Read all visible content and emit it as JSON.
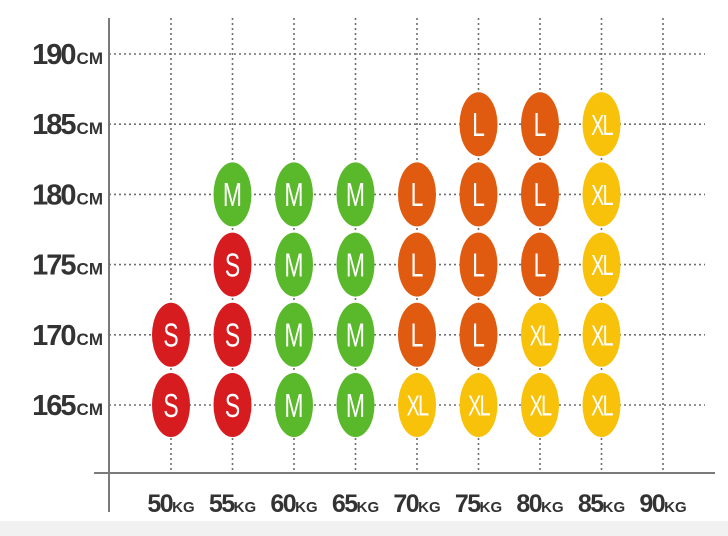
{
  "chart_data": {
    "type": "scatter",
    "title": "",
    "xlabel": "",
    "ylabel": "",
    "x_unit": "KG",
    "y_unit": "CM",
    "x_ticks": [
      {
        "value": 50,
        "label": "50",
        "unit": "KG"
      },
      {
        "value": 55,
        "label": "55",
        "unit": "KG"
      },
      {
        "value": 60,
        "label": "60",
        "unit": "KG"
      },
      {
        "value": 65,
        "label": "65",
        "unit": "KG"
      },
      {
        "value": 70,
        "label": "70",
        "unit": "KG"
      },
      {
        "value": 75,
        "label": "75",
        "unit": "KG"
      },
      {
        "value": 80,
        "label": "80",
        "unit": "KG"
      },
      {
        "value": 85,
        "label": "85",
        "unit": "KG"
      },
      {
        "value": 90,
        "label": "90",
        "unit": "KG"
      }
    ],
    "y_ticks": [
      {
        "value": 190,
        "label": "190",
        "unit": "CM"
      },
      {
        "value": 185,
        "label": "185",
        "unit": "CM"
      },
      {
        "value": 180,
        "label": "180",
        "unit": "CM"
      },
      {
        "value": 175,
        "label": "175",
        "unit": "CM"
      },
      {
        "value": 170,
        "label": "170",
        "unit": "CM"
      },
      {
        "value": 165,
        "label": "165",
        "unit": "CM"
      }
    ],
    "xlim": [
      50,
      90
    ],
    "ylim": [
      165,
      190
    ],
    "grid": true,
    "grid_style": "dotted",
    "size_colors": {
      "S": "#d71c20",
      "M": "#5ab82b",
      "L": "#e05b10",
      "XL": "#f8c10a"
    },
    "points": [
      {
        "x": 75,
        "y": 185,
        "size": "L"
      },
      {
        "x": 80,
        "y": 185,
        "size": "L"
      },
      {
        "x": 85,
        "y": 185,
        "size": "XL"
      },
      {
        "x": 55,
        "y": 180,
        "size": "M"
      },
      {
        "x": 60,
        "y": 180,
        "size": "M"
      },
      {
        "x": 65,
        "y": 180,
        "size": "M"
      },
      {
        "x": 70,
        "y": 180,
        "size": "L"
      },
      {
        "x": 75,
        "y": 180,
        "size": "L"
      },
      {
        "x": 80,
        "y": 180,
        "size": "L"
      },
      {
        "x": 85,
        "y": 180,
        "size": "XL"
      },
      {
        "x": 55,
        "y": 175,
        "size": "S"
      },
      {
        "x": 60,
        "y": 175,
        "size": "M"
      },
      {
        "x": 65,
        "y": 175,
        "size": "M"
      },
      {
        "x": 70,
        "y": 175,
        "size": "L"
      },
      {
        "x": 75,
        "y": 175,
        "size": "L"
      },
      {
        "x": 80,
        "y": 175,
        "size": "L"
      },
      {
        "x": 85,
        "y": 175,
        "size": "XL"
      },
      {
        "x": 50,
        "y": 170,
        "size": "S"
      },
      {
        "x": 55,
        "y": 170,
        "size": "S"
      },
      {
        "x": 60,
        "y": 170,
        "size": "M"
      },
      {
        "x": 65,
        "y": 170,
        "size": "M"
      },
      {
        "x": 70,
        "y": 170,
        "size": "L"
      },
      {
        "x": 75,
        "y": 170,
        "size": "L"
      },
      {
        "x": 80,
        "y": 170,
        "size": "XL"
      },
      {
        "x": 85,
        "y": 170,
        "size": "XL"
      },
      {
        "x": 50,
        "y": 165,
        "size": "S"
      },
      {
        "x": 55,
        "y": 165,
        "size": "S"
      },
      {
        "x": 60,
        "y": 165,
        "size": "M"
      },
      {
        "x": 65,
        "y": 165,
        "size": "M"
      },
      {
        "x": 70,
        "y": 165,
        "size": "XL"
      },
      {
        "x": 75,
        "y": 165,
        "size": "XL"
      },
      {
        "x": 80,
        "y": 165,
        "size": "XL"
      },
      {
        "x": 85,
        "y": 165,
        "size": "XL"
      }
    ]
  }
}
